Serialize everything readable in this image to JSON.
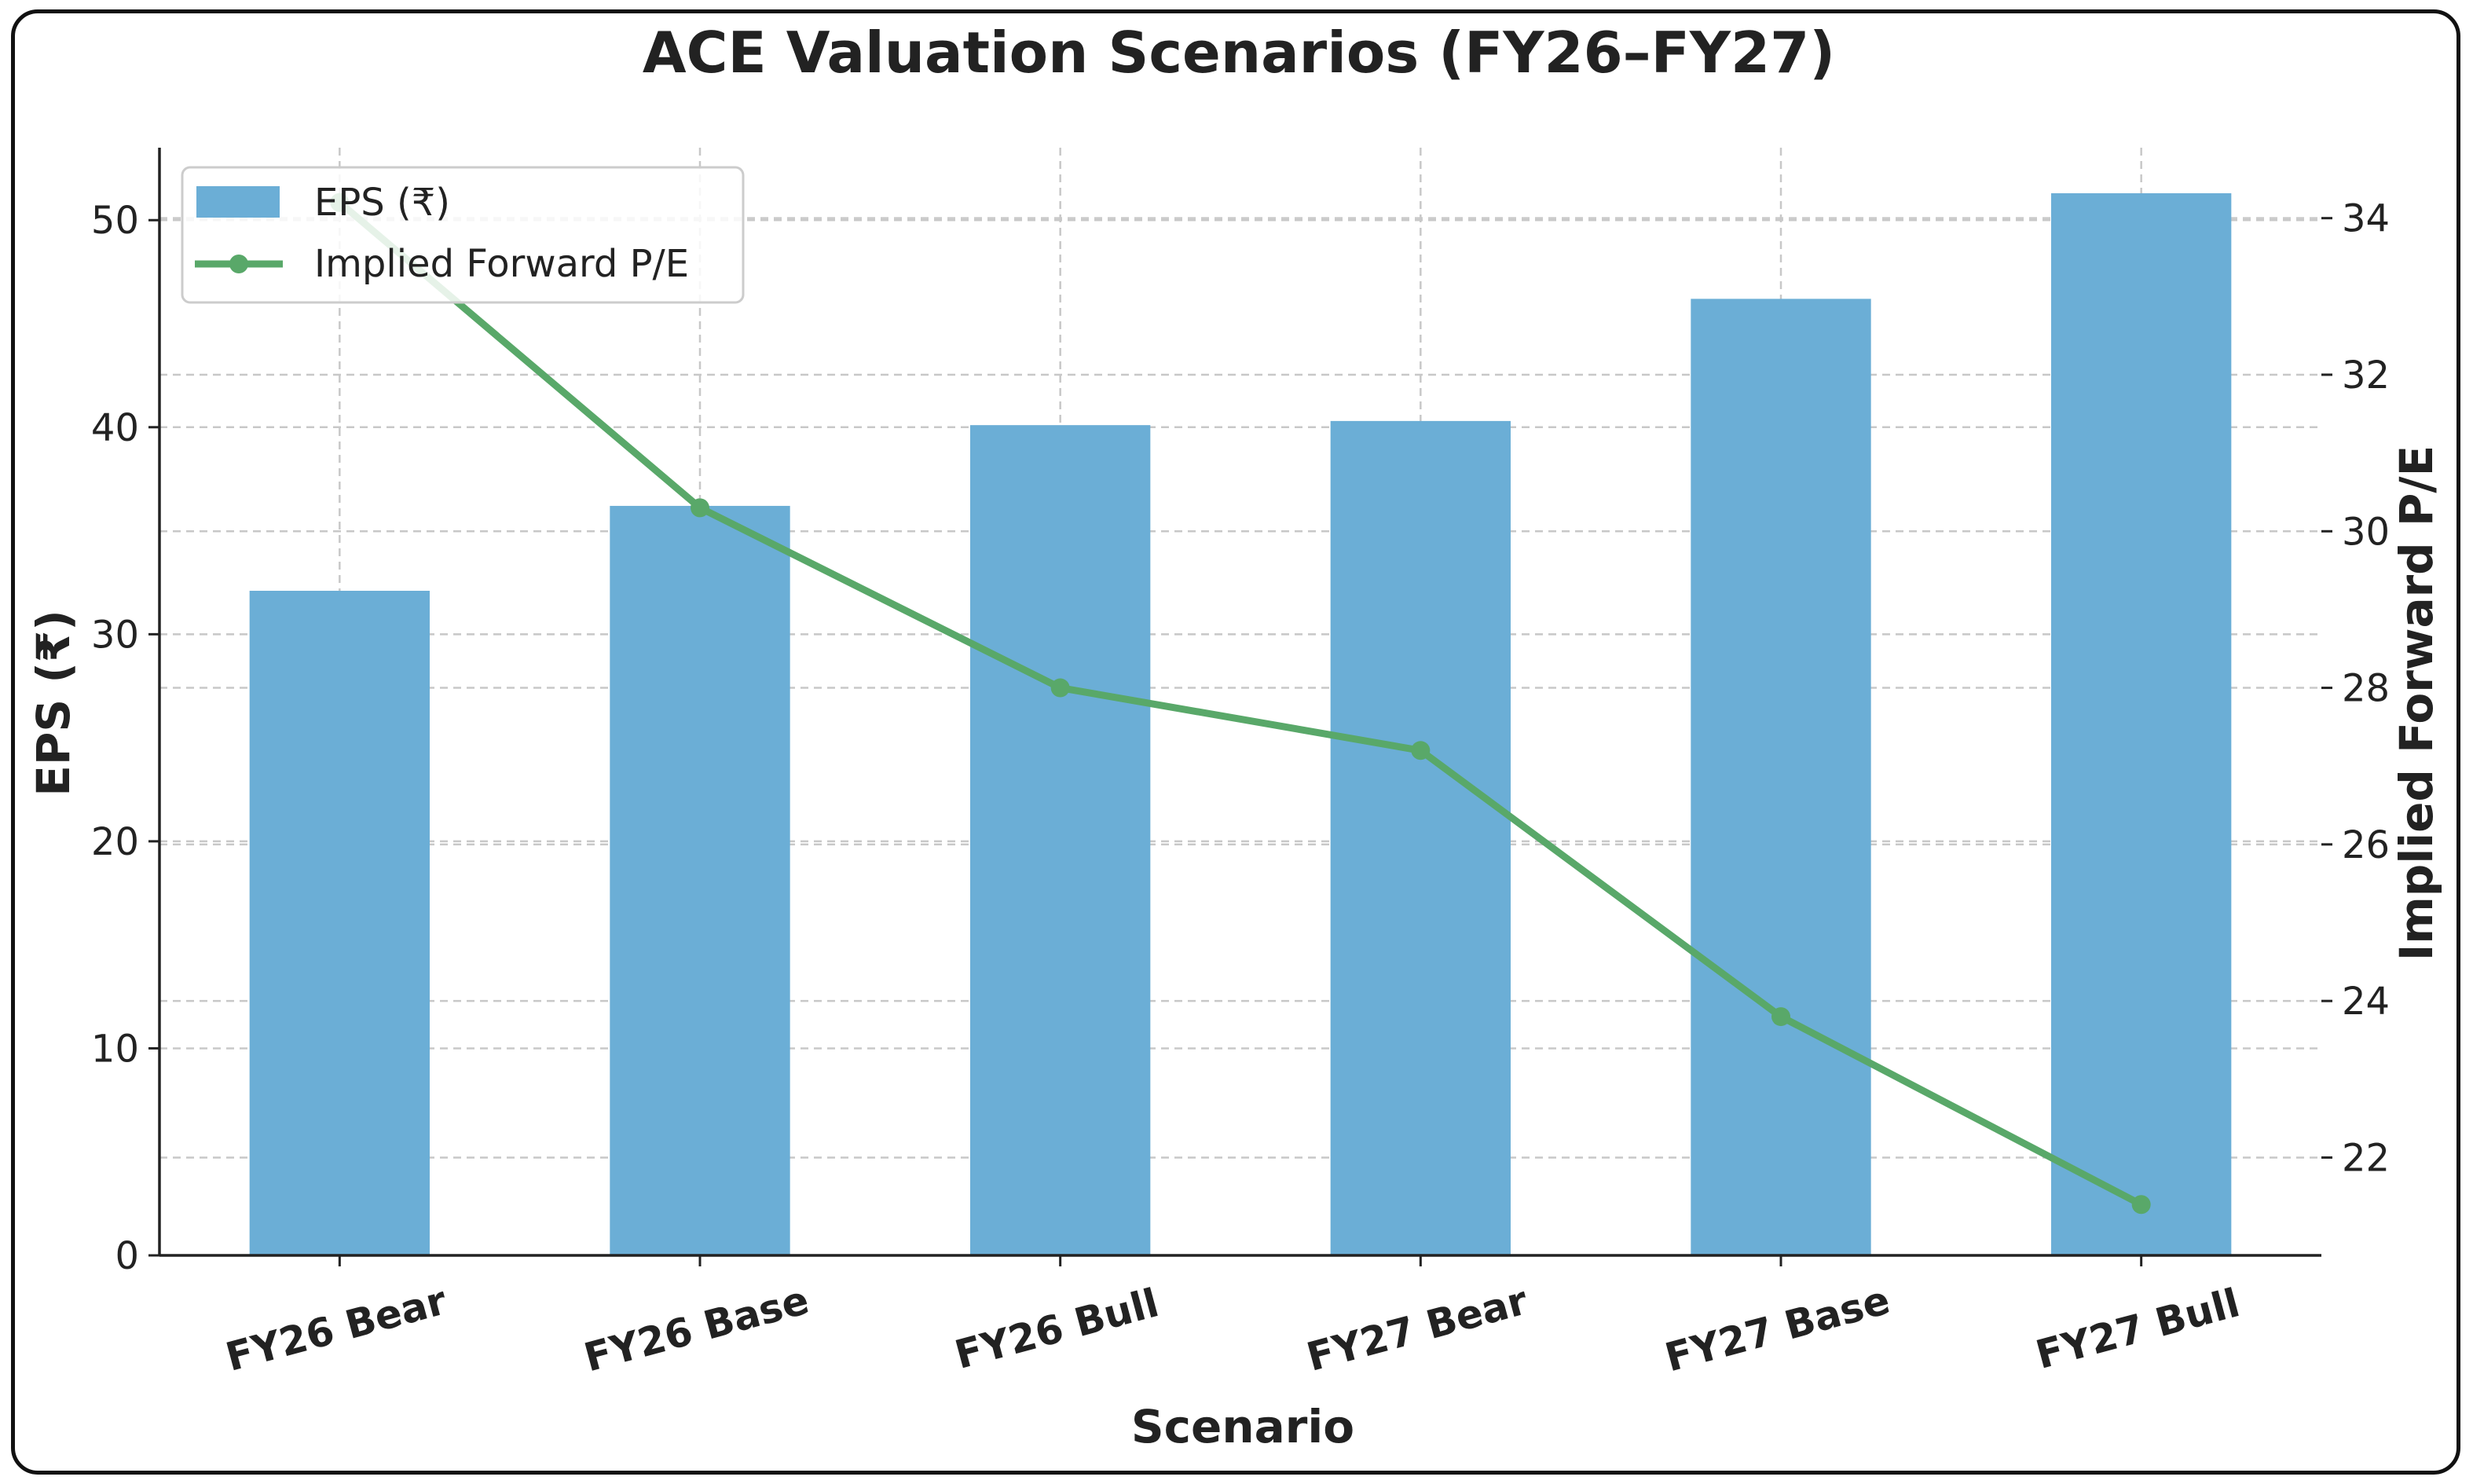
{
  "chart_data": {
    "type": "bar+line",
    "title": "ACE Valuation Scenarios (FY26–FY27)",
    "xlabel": "Scenario",
    "ylabel": "EPS (₹)",
    "y2label": "Implied Forward P/E",
    "categories": [
      "FY26 Bear",
      "FY26 Base",
      "FY26 Bull",
      "FY27 Bear",
      "FY27 Base",
      "FY27 Bull"
    ],
    "series": [
      {
        "name": "EPS (₹)",
        "kind": "bar",
        "axis": "left",
        "values": [
          32.1,
          36.2,
          40.1,
          40.3,
          46.2,
          51.3
        ]
      },
      {
        "name": "Implied Forward P/E",
        "kind": "line",
        "axis": "right",
        "values": [
          34.2,
          30.3,
          28.0,
          27.2,
          23.8,
          21.4
        ]
      }
    ],
    "ylim": [
      0,
      53.5
    ],
    "y2lim": [
      20.75,
      34.9
    ],
    "yticks": [
      0,
      10,
      20,
      30,
      40,
      50
    ],
    "y2ticks": [
      22,
      24,
      26,
      28,
      30,
      32,
      34
    ],
    "legend": "top-left",
    "grid": true,
    "colors": {
      "bar": "#6baed6",
      "line": "#59a869",
      "axis": "#222222",
      "grid": "#c8c8c8"
    }
  }
}
